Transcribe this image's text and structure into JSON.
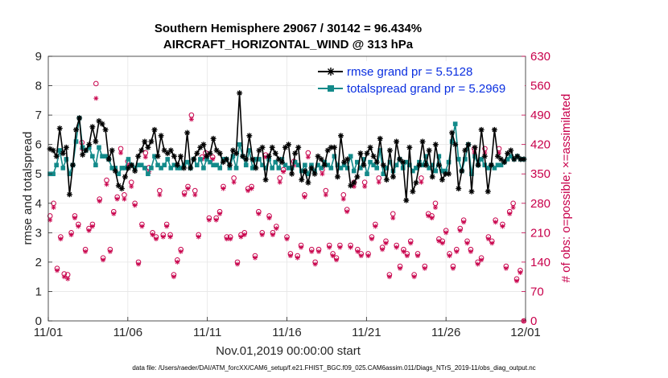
{
  "chart_data": {
    "type": "line",
    "title_line1": "Southern Hemisphere 29067 / 30142 = 96.434%",
    "title_line2": "AIRCRAFT_HORIZONTAL_WIND @ 313 hPa",
    "ylabel": "rmse and totalspread",
    "y2label": "# of obs: o=possible; ×=assimilated",
    "xlabel": "Nov.01,2019 00:00:00 start",
    "footnote": "data file: /Users/raeder/DAI/ATM_forcXX/CAM6_setup/f.e21.FHIST_BGC.f09_025.CAM6assim.011/Diags_NTrS_2019-11/obs_diag_output.nc",
    "xlim": [
      0,
      30
    ],
    "ylim": [
      0,
      9
    ],
    "y2lim": [
      0,
      630
    ],
    "x_ticks": [
      0,
      5,
      10,
      15,
      20,
      25,
      30
    ],
    "x_tick_labels": [
      "11/01",
      "11/06",
      "11/11",
      "11/16",
      "11/21",
      "11/26",
      "12/01"
    ],
    "y_ticks": [
      "0",
      "1",
      "2",
      "3",
      "4",
      "5",
      "6",
      "7",
      "8",
      "9"
    ],
    "y2_ticks": [
      "0",
      "70",
      "140",
      "210",
      "280",
      "350",
      "420",
      "490",
      "560",
      "630"
    ],
    "legend": [
      "rmse grand pr = 5.5128",
      "totalspread grand pr = 5.2969"
    ],
    "colors": {
      "rmse": "#000000",
      "spread": "#138a8a",
      "obs": "#c8004b",
      "legend_text": "#0a2fe0"
    },
    "series": [
      {
        "name": "rmse",
        "values": [
          5.85,
          5.8,
          5.6,
          6.55,
          5.7,
          5.9,
          4.3,
          5.3,
          6.5,
          6.9,
          5.65,
          5.8,
          6.0,
          6.6,
          6.1,
          6.8,
          6.7,
          6.5,
          5.5,
          5.8,
          5.1,
          4.6,
          4.5,
          4.9,
          5.2,
          5.3,
          5.1,
          5.6,
          5.8,
          6.1,
          5.9,
          6.1,
          6.5,
          5.6,
          6.3,
          5.8,
          5.7,
          5.8,
          5.6,
          5.3,
          5.6,
          5.2,
          6.4,
          5.2,
          5.5,
          5.7,
          5.9,
          6.0,
          5.6,
          5.7,
          6.2,
          5.8,
          5.7,
          5.4,
          5.5,
          5.3,
          5.8,
          5.7,
          7.75,
          5.6,
          5.5,
          6.3,
          5.5,
          5.2,
          5.8,
          5.9,
          4.8,
          5.6,
          5.9,
          5.7,
          5.5,
          5.4,
          5.9,
          6.0,
          5.0,
          5.7,
          5.9,
          4.8,
          5.1,
          4.7,
          5.2,
          5.0,
          5.6,
          5.5,
          5.3,
          5.8,
          5.9,
          5.9,
          4.9,
          6.3,
          5.4,
          5.5,
          4.6,
          4.7,
          4.9,
          5.7,
          5.3,
          5.7,
          5.9,
          5.6,
          5.4,
          6.2,
          5.3,
          4.8,
          5.8,
          4.9,
          6.1,
          5.5,
          5.4,
          4.1,
          5.9,
          4.4,
          4.7,
          5.3,
          6.1,
          5.3,
          5.8,
          4.9,
          6.0,
          5.3,
          4.8,
          5.0,
          5.0,
          6.4,
          6.0,
          4.5,
          5.1,
          5.8,
          6.0,
          4.4,
          5.9,
          5.3,
          6.5,
          5.6,
          4.4,
          5.3,
          6.5,
          5.6,
          5.5,
          5.4,
          5.7,
          5.8,
          5.5,
          5.6,
          5.5,
          5.5
        ]
      },
      {
        "name": "totalspread",
        "values": [
          5.0,
          5.0,
          5.3,
          5.8,
          5.2,
          5.5,
          5.0,
          5.3,
          6.1,
          6.9,
          5.9,
          5.8,
          5.9,
          5.6,
          5.3,
          5.9,
          5.6,
          5.6,
          5.5,
          5.2,
          5.2,
          5.0,
          5.2,
          5.2,
          5.5,
          5.3,
          5.2,
          5.3,
          5.3,
          5.2,
          5.0,
          5.2,
          5.6,
          5.3,
          5.2,
          5.3,
          5.5,
          5.2,
          5.3,
          5.2,
          5.2,
          5.3,
          5.4,
          5.2,
          5.5,
          5.3,
          5.5,
          5.2,
          5.5,
          5.4,
          5.3,
          5.3,
          5.2,
          5.5,
          5.5,
          5.2,
          5.6,
          5.2,
          6.0,
          5.6,
          5.3,
          5.8,
          5.2,
          5.5,
          5.5,
          5.3,
          5.2,
          5.5,
          5.2,
          5.4,
          5.2,
          5.5,
          5.3,
          5.2,
          5.2,
          5.4,
          5.3,
          5.1,
          5.3,
          5.0,
          5.3,
          5.1,
          5.3,
          5.2,
          5.4,
          5.3,
          5.2,
          5.6,
          5.3,
          5.2,
          5.3,
          5.2,
          5.6,
          5.1,
          5.4,
          5.2,
          5.5,
          5.0,
          5.4,
          5.3,
          5.2,
          5.8,
          5.0,
          5.2,
          5.4,
          5.1,
          5.3,
          5.5,
          5.2,
          5.4,
          5.3,
          5.1,
          5.2,
          5.4,
          5.3,
          5.6,
          5.2,
          5.3,
          5.1,
          5.6,
          5.1,
          5.1,
          5.4,
          6.1,
          6.7,
          5.5,
          5.1,
          5.5,
          6.0,
          5.0,
          5.6,
          5.3,
          5.5,
          5.3,
          5.2,
          5.3,
          5.2,
          5.3,
          5.3,
          5.4,
          5.5,
          5.6,
          5.5,
          5.6,
          5.5,
          5.5
        ]
      },
      {
        "name": "obs_possible",
        "values": [
          250,
          280,
          125,
          200,
          112,
          110,
          210,
          250,
          230,
          425,
          170,
          220,
          230,
          565,
          290,
          150,
          335,
          170,
          260,
          295,
          410,
          300,
          380,
          330,
          280,
          140,
          230,
          400,
          365,
          210,
          200,
          310,
          205,
          230,
          205,
          110,
          145,
          170,
          305,
          320,
          490,
          310,
          205,
          390,
          400,
          245,
          390,
          245,
          260,
          320,
          200,
          200,
          340,
          140,
          205,
          210,
          315,
          320,
          155,
          260,
          210,
          395,
          250,
          210,
          225,
          340,
          360,
          200,
          160,
          380,
          155,
          180,
          300,
          400,
          170,
          140,
          170,
          360,
          310,
          180,
          160,
          150,
          180,
          300,
          265,
          180,
          330,
          170,
          160,
          330,
          160,
          200,
          230,
          340,
          175,
          190,
          110,
          255,
          180,
          130,
          170,
          160,
          190,
          110,
          160,
          340,
          130,
          255,
          250,
          280,
          195,
          190,
          215,
          160,
          130,
          170,
          220,
          240,
          190,
          170,
          410,
          140,
          150,
          410,
          200,
          190,
          240,
          410,
          230,
          130,
          260,
          280,
          100,
          120,
          0
        ]
      },
      {
        "name": "obs_assimilated",
        "values": [
          240,
          270,
          120,
          195,
          105,
          100,
          205,
          245,
          225,
          410,
          165,
          215,
          225,
          530,
          285,
          145,
          325,
          165,
          255,
          290,
          400,
          290,
          370,
          320,
          275,
          135,
          225,
          390,
          355,
          205,
          195,
          300,
          200,
          225,
          200,
          105,
          140,
          165,
          300,
          315,
          480,
          300,
          200,
          385,
          390,
          240,
          385,
          240,
          255,
          315,
          195,
          195,
          330,
          135,
          200,
          205,
          310,
          315,
          150,
          255,
          205,
          390,
          245,
          205,
          220,
          330,
          355,
          195,
          155,
          370,
          150,
          175,
          295,
          390,
          165,
          135,
          165,
          350,
          300,
          175,
          155,
          145,
          175,
          290,
          260,
          175,
          320,
          165,
          155,
          320,
          155,
          195,
          225,
          330,
          170,
          185,
          105,
          245,
          175,
          125,
          165,
          155,
          185,
          105,
          155,
          330,
          125,
          250,
          245,
          270,
          190,
          185,
          210,
          155,
          125,
          165,
          215,
          235,
          185,
          165,
          400,
          135,
          145,
          400,
          195,
          185,
          235,
          400,
          225,
          125,
          255,
          270,
          95,
          115,
          0
        ]
      }
    ]
  }
}
